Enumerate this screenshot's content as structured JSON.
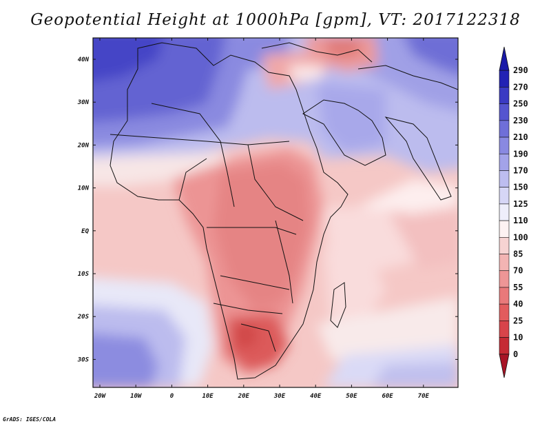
{
  "title": "Geopotential Height at 1000hPa [gpm], VT: 2017122318",
  "credit": "GrADS: IGES/COLA",
  "map": {
    "lon_ticks": [
      "20W",
      "10W",
      "0",
      "10E",
      "20E",
      "30E",
      "40E",
      "50E",
      "60E",
      "70E"
    ],
    "lat_ticks": [
      "40N",
      "30N",
      "20N",
      "10N",
      "EQ",
      "10S",
      "20S",
      "30S"
    ]
  },
  "colorbar": {
    "levels": [
      "0",
      "10",
      "25",
      "40",
      "55",
      "70",
      "85",
      "100",
      "110",
      "125",
      "150",
      "170",
      "190",
      "210",
      "230",
      "250",
      "270",
      "290"
    ],
    "colors": [
      "#a81426",
      "#c52a34",
      "#d8444a",
      "#e25c5d",
      "#e9797a",
      "#ee9696",
      "#f3b4b3",
      "#f7d3d2",
      "#fdf2f2",
      "#eeeefb",
      "#d6d6f6",
      "#bdbdf0",
      "#a3a3e9",
      "#8989e1",
      "#6f6fd8",
      "#5555cf",
      "#3b3bc3",
      "#2222b4"
    ],
    "min_color": "#a81426",
    "max_color": "#1a1aa8"
  }
}
